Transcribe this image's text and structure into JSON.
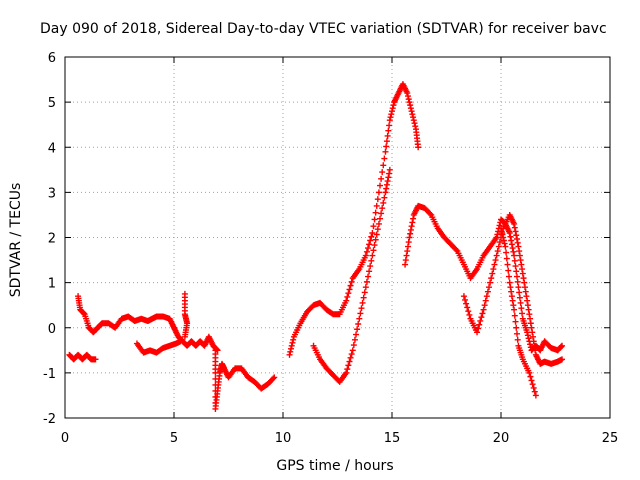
{
  "chart_data": {
    "type": "scatter",
    "title": "Day 090 of 2018, Sidereal Day-to-day VTEC variation (SDTVAR) for receiver bavc",
    "xlabel": "GPS time / hours",
    "ylabel": "SDTVAR / TECUs",
    "xlim": [
      0,
      25
    ],
    "ylim": [
      -2,
      6
    ],
    "xticks": [
      0,
      5,
      10,
      15,
      20,
      25
    ],
    "yticks": [
      -2,
      -1,
      0,
      1,
      2,
      3,
      4,
      5,
      6
    ],
    "grid": true,
    "marker": "+",
    "series": [
      {
        "name": "SDTVAR",
        "color": "#ff0000",
        "segments": [
          [
            [
              0.2,
              -0.6
            ],
            [
              0.4,
              -0.7
            ],
            [
              0.6,
              -0.6
            ],
            [
              0.8,
              -0.7
            ],
            [
              1.0,
              -0.6
            ],
            [
              1.2,
              -0.7
            ],
            [
              1.4,
              -0.7
            ]
          ],
          [
            [
              0.6,
              0.7
            ],
            [
              0.7,
              0.4
            ],
            [
              0.9,
              0.3
            ],
            [
              1.1,
              0.0
            ],
            [
              1.3,
              -0.1
            ],
            [
              1.5,
              0.0
            ],
            [
              1.7,
              0.1
            ],
            [
              2.0,
              0.1
            ],
            [
              2.3,
              0.0
            ],
            [
              2.6,
              0.2
            ],
            [
              2.9,
              0.25
            ],
            [
              3.2,
              0.15
            ],
            [
              3.5,
              0.2
            ],
            [
              3.8,
              0.15
            ],
            [
              4.0,
              0.2
            ],
            [
              4.2,
              0.25
            ],
            [
              4.5,
              0.25
            ],
            [
              4.8,
              0.2
            ],
            [
              5.0,
              0.0
            ],
            [
              5.2,
              -0.2
            ],
            [
              5.4,
              -0.3
            ],
            [
              5.6,
              -0.4
            ],
            [
              5.8,
              -0.3
            ],
            [
              6.0,
              -0.4
            ],
            [
              6.2,
              -0.3
            ],
            [
              6.4,
              -0.4
            ],
            [
              6.6,
              -0.2
            ],
            [
              6.8,
              -0.4
            ],
            [
              7.0,
              -0.5
            ]
          ],
          [
            [
              3.3,
              -0.35
            ],
            [
              3.6,
              -0.55
            ],
            [
              3.9,
              -0.5
            ],
            [
              4.2,
              -0.55
            ],
            [
              4.5,
              -0.45
            ],
            [
              4.8,
              -0.4
            ],
            [
              5.1,
              -0.35
            ],
            [
              5.3,
              -0.3
            ]
          ],
          [
            [
              5.5,
              0.75
            ],
            [
              5.5,
              0.3
            ],
            [
              5.6,
              0.1
            ],
            [
              5.5,
              -0.2
            ]
          ],
          [
            [
              6.9,
              -0.5
            ],
            [
              6.9,
              -1.0
            ],
            [
              6.9,
              -1.8
            ],
            [
              7.0,
              -1.4
            ],
            [
              7.1,
              -1.0
            ],
            [
              7.2,
              -0.8
            ],
            [
              7.3,
              -0.9
            ],
            [
              7.5,
              -1.1
            ],
            [
              7.8,
              -0.9
            ],
            [
              8.1,
              -0.9
            ],
            [
              8.4,
              -1.1
            ],
            [
              8.7,
              -1.2
            ],
            [
              9.0,
              -1.35
            ],
            [
              9.3,
              -1.25
            ],
            [
              9.6,
              -1.1
            ]
          ],
          [
            [
              10.3,
              -0.6
            ],
            [
              10.5,
              -0.2
            ],
            [
              10.8,
              0.1
            ],
            [
              11.1,
              0.35
            ],
            [
              11.4,
              0.5
            ],
            [
              11.7,
              0.55
            ],
            [
              12.0,
              0.4
            ],
            [
              12.3,
              0.3
            ],
            [
              12.6,
              0.3
            ],
            [
              12.9,
              0.6
            ],
            [
              13.2,
              1.1
            ],
            [
              13.5,
              1.3
            ],
            [
              13.8,
              1.6
            ],
            [
              14.1,
              2.1
            ],
            [
              14.4,
              3.0
            ],
            [
              14.7,
              3.9
            ],
            [
              14.9,
              4.6
            ],
            [
              15.1,
              5.0
            ],
            [
              15.3,
              5.2
            ],
            [
              15.5,
              5.4
            ],
            [
              15.7,
              5.2
            ],
            [
              15.9,
              4.8
            ],
            [
              16.1,
              4.4
            ],
            [
              16.2,
              4.0
            ]
          ],
          [
            [
              11.4,
              -0.4
            ],
            [
              11.7,
              -0.7
            ],
            [
              12.0,
              -0.9
            ],
            [
              12.3,
              -1.05
            ],
            [
              12.6,
              -1.2
            ],
            [
              12.9,
              -1.0
            ],
            [
              13.2,
              -0.5
            ],
            [
              13.5,
              0.2
            ],
            [
              13.8,
              0.9
            ],
            [
              14.1,
              1.6
            ],
            [
              14.4,
              2.3
            ],
            [
              14.7,
              3.0
            ],
            [
              14.9,
              3.5
            ]
          ],
          [
            [
              15.6,
              1.4
            ],
            [
              15.8,
              2.0
            ],
            [
              16.0,
              2.5
            ],
            [
              16.2,
              2.7
            ],
            [
              16.5,
              2.65
            ],
            [
              16.8,
              2.5
            ],
            [
              17.1,
              2.2
            ],
            [
              17.4,
              2.0
            ],
            [
              17.7,
              1.85
            ],
            [
              18.0,
              1.7
            ],
            [
              18.3,
              1.4
            ],
            [
              18.6,
              1.1
            ],
            [
              18.9,
              1.3
            ],
            [
              19.2,
              1.6
            ],
            [
              19.5,
              1.8
            ],
            [
              19.8,
              2.0
            ],
            [
              20.0,
              2.4
            ],
            [
              20.2,
              2.3
            ],
            [
              20.4,
              2.1
            ],
            [
              20.6,
              1.6
            ],
            [
              20.8,
              0.9
            ],
            [
              21.0,
              0.2
            ],
            [
              21.2,
              -0.1
            ],
            [
              21.4,
              -0.5
            ],
            [
              21.6,
              -0.4
            ],
            [
              21.8,
              -0.5
            ],
            [
              22.0,
              -0.3
            ],
            [
              22.3,
              -0.45
            ],
            [
              22.6,
              -0.5
            ],
            [
              22.8,
              -0.4
            ]
          ],
          [
            [
              18.3,
              0.7
            ],
            [
              18.6,
              0.2
            ],
            [
              18.9,
              -0.1
            ],
            [
              19.2,
              0.4
            ],
            [
              19.5,
              1.0
            ],
            [
              19.8,
              1.6
            ],
            [
              20.1,
              2.2
            ],
            [
              20.4,
              2.5
            ],
            [
              20.6,
              2.3
            ],
            [
              20.8,
              1.8
            ],
            [
              21.0,
              1.2
            ],
            [
              21.2,
              0.6
            ],
            [
              21.4,
              0.0
            ],
            [
              21.6,
              -0.6
            ],
            [
              21.8,
              -0.8
            ],
            [
              22.0,
              -0.75
            ],
            [
              22.3,
              -0.8
            ],
            [
              22.6,
              -0.75
            ],
            [
              22.8,
              -0.7
            ]
          ],
          [
            [
              20.0,
              2.2
            ],
            [
              20.2,
              1.8
            ],
            [
              20.4,
              1.0
            ],
            [
              20.6,
              0.4
            ],
            [
              20.8,
              -0.4
            ],
            [
              21.0,
              -0.7
            ],
            [
              21.3,
              -1.0
            ],
            [
              21.6,
              -1.5
            ]
          ]
        ]
      }
    ]
  }
}
